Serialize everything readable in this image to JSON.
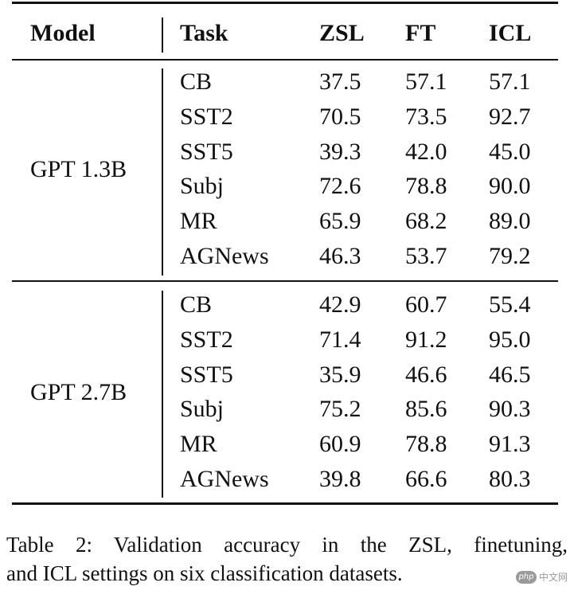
{
  "table": {
    "headers": {
      "model": "Model",
      "task": "Task",
      "zsl": "ZSL",
      "ft": "FT",
      "icl": "ICL"
    },
    "groups": [
      {
        "model": "GPT 1.3B",
        "rows": [
          {
            "task": "CB",
            "zsl": "37.5",
            "ft": "57.1",
            "icl": "57.1"
          },
          {
            "task": "SST2",
            "zsl": "70.5",
            "ft": "73.5",
            "icl": "92.7"
          },
          {
            "task": "SST5",
            "zsl": "39.3",
            "ft": "42.0",
            "icl": "45.0"
          },
          {
            "task": "Subj",
            "zsl": "72.6",
            "ft": "78.8",
            "icl": "90.0"
          },
          {
            "task": "MR",
            "zsl": "65.9",
            "ft": "68.2",
            "icl": "89.0"
          },
          {
            "task": "AGNews",
            "zsl": "46.3",
            "ft": "53.7",
            "icl": "79.2"
          }
        ]
      },
      {
        "model": "GPT 2.7B",
        "rows": [
          {
            "task": "CB",
            "zsl": "42.9",
            "ft": "60.7",
            "icl": "55.4"
          },
          {
            "task": "SST2",
            "zsl": "71.4",
            "ft": "91.2",
            "icl": "95.0"
          },
          {
            "task": "SST5",
            "zsl": "35.9",
            "ft": "46.6",
            "icl": "46.5"
          },
          {
            "task": "Subj",
            "zsl": "75.2",
            "ft": "85.6",
            "icl": "90.3"
          },
          {
            "task": "MR",
            "zsl": "60.9",
            "ft": "78.8",
            "icl": "91.3"
          },
          {
            "task": "AGNews",
            "zsl": "39.8",
            "ft": "66.6",
            "icl": "80.3"
          }
        ]
      }
    ]
  },
  "caption": {
    "line1": "Table 2:  Validation accuracy in the ZSL, finetuning,",
    "line2": "and ICL settings on six classification datasets."
  },
  "watermark": {
    "logo": "php",
    "text": "中文网"
  }
}
